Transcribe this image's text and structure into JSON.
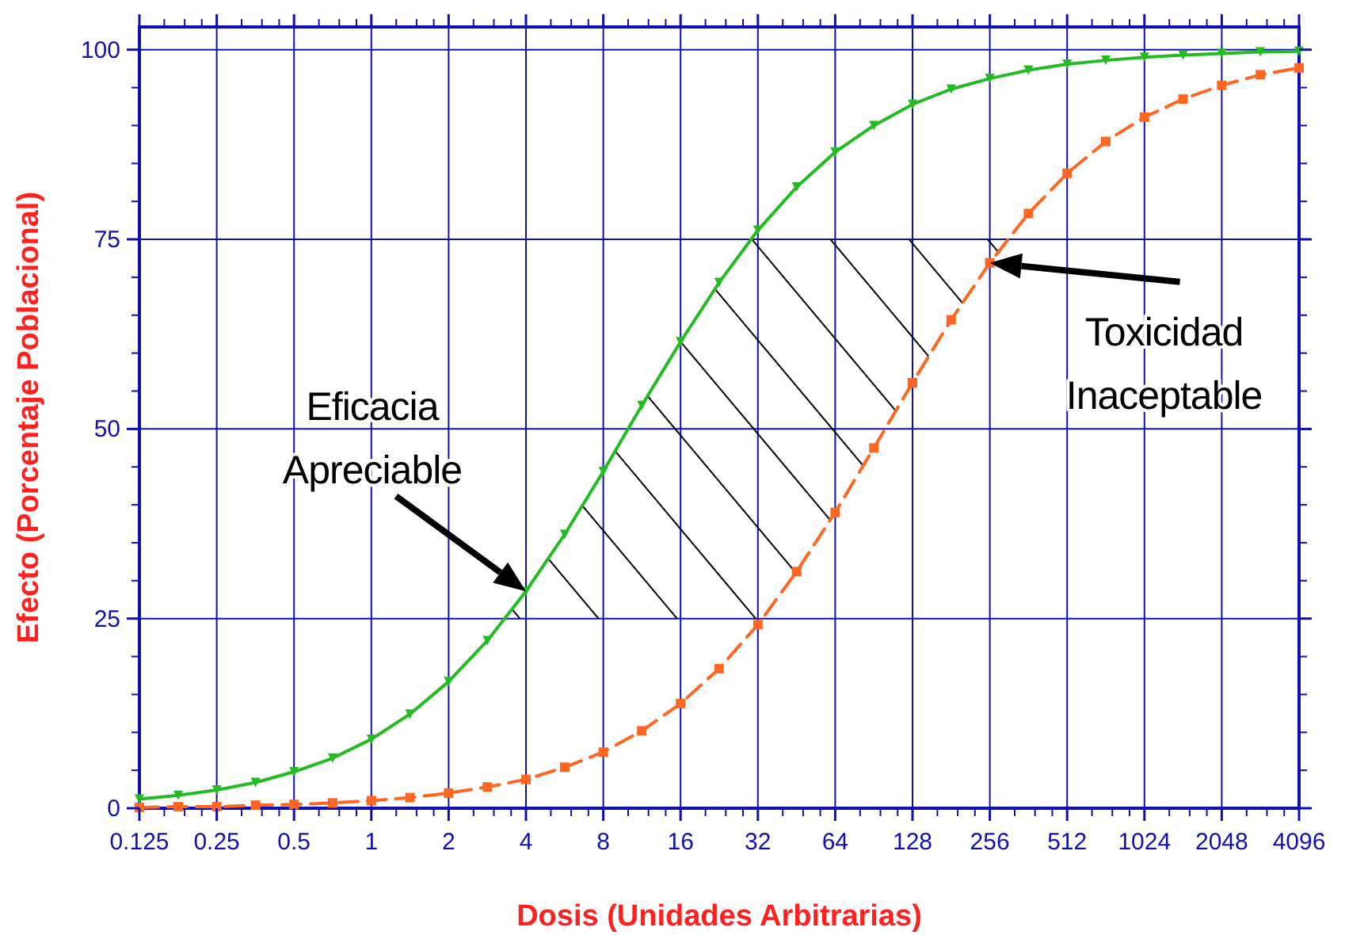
{
  "chart_data": {
    "type": "line",
    "xlabel": "Dosis (Unidades Arbitrarias)",
    "ylabel": "Efecto (Porcentaje Poblacional)",
    "log": "x",
    "grid": true,
    "xlim": [
      0.125,
      4096
    ],
    "ylim": [
      0,
      103
    ],
    "xticks": [
      0.125,
      0.25,
      0.5,
      1,
      2,
      4,
      8,
      16,
      32,
      64,
      128,
      256,
      512,
      1024,
      2048,
      4096
    ],
    "yticks": [
      0,
      25,
      50,
      75,
      100
    ],
    "x": [
      0.125,
      0.177,
      0.25,
      0.354,
      0.5,
      0.707,
      1,
      1.414,
      2,
      2.83,
      4,
      5.66,
      8,
      11.3,
      16,
      22.6,
      32,
      45.3,
      64,
      90.5,
      128,
      181,
      256,
      362,
      512,
      724,
      1024,
      1448,
      2048,
      2896,
      4096
    ],
    "series": [
      {
        "color": "#22bb22",
        "marker": "triangle",
        "line_style": "solid",
        "values": [
          1.2,
          1.7,
          2.4,
          3.4,
          4.8,
          6.6,
          9.1,
          12.4,
          16.7,
          22.1,
          28.6,
          36.1,
          44.4,
          53.1,
          61.5,
          69.3,
          76.2,
          81.9,
          86.5,
          90.0,
          92.8,
          94.8,
          96.2,
          97.3,
          98.1,
          98.6,
          99.0,
          99.3,
          99.5,
          99.7,
          99.8
        ]
      },
      {
        "color": "#ff6622",
        "marker": "square",
        "line_style": "dashed",
        "values": [
          0.1,
          0.2,
          0.2,
          0.4,
          0.5,
          0.7,
          1.0,
          1.4,
          2.0,
          2.8,
          3.8,
          5.4,
          7.4,
          10.2,
          13.8,
          18.4,
          24.2,
          31.2,
          39.0,
          47.5,
          56.1,
          64.4,
          71.9,
          78.4,
          83.7,
          87.9,
          91.1,
          93.5,
          95.3,
          96.7,
          97.6
        ]
      }
    ],
    "annotations": [
      {
        "text": "Eficacia Apreciable",
        "x": 4,
        "y": 28.6
      },
      {
        "text": "Toxicidad Inaceptable",
        "x": 256,
        "y": 71.9
      }
    ]
  }
}
